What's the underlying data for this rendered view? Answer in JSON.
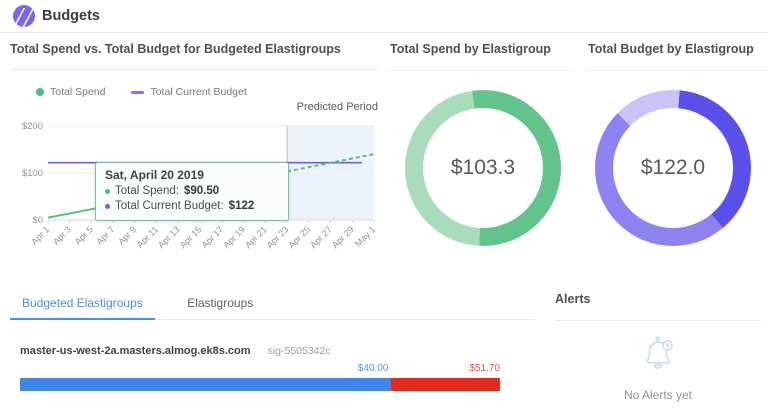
{
  "header": {
    "title": "Budgets"
  },
  "panels": {
    "spend_vs_budget": {
      "title": "Total Spend vs. Total Budget for Budgeted Elastigroups",
      "legend": [
        {
          "label": "Total Spend",
          "color": "#4abd8a",
          "marker": "dot"
        },
        {
          "label": "Total Current Budget",
          "color": "#8278ea",
          "marker": "dash"
        }
      ],
      "predicted_label": "Predicted Period",
      "tooltip": {
        "date": "Sat, April 20 2019",
        "rows": [
          {
            "label": "Total Spend:",
            "value": "$90.50",
            "color": "#4abd8a"
          },
          {
            "label": "Total Current Budget:",
            "value": "$122",
            "color": "#6b5fe6"
          }
        ]
      }
    },
    "total_spend": {
      "title": "Total Spend by Elastigroup",
      "center_label": "$103.3"
    },
    "total_budget": {
      "title": "Total Budget by Elastigroup",
      "center_label": "$122.0"
    },
    "alerts": {
      "title": "Alerts",
      "empty_message": "No Alerts yet"
    }
  },
  "tabs": [
    {
      "label": "Budgeted Elastigroups",
      "active": true
    },
    {
      "label": "Elastigroups",
      "active": false
    }
  ],
  "elastigroup_row": {
    "name": "master-us-west-2a.masters.almog.ek8s.com",
    "sig": "sig-5505342c",
    "spend_label": "$40.00",
    "total_label": "$51.70",
    "spend_value": 40.0,
    "total_value": 51.7,
    "spend_color": "#3e86e8",
    "over_color": "#e52a1f"
  },
  "chart_data": [
    {
      "type": "line",
      "title": "Total Spend vs. Total Budget for Budgeted Elastigroups",
      "x": [
        "Apr 1",
        "Apr 3",
        "Apr 5",
        "Apr 7",
        "Apr 9",
        "Apr 11",
        "Apr 13",
        "Apr 15",
        "Apr 17",
        "Apr 19",
        "Apr 21",
        "Apr 23",
        "Apr 25",
        "Apr 27",
        "Apr 29",
        "May 1"
      ],
      "series": [
        {
          "name": "Total Spend",
          "color": "#55bd86",
          "values": [
            5,
            14,
            23,
            32,
            41,
            50,
            59,
            68,
            77,
            86.5,
            95.5,
            103.3,
            112.5,
            121.7,
            130.9,
            140
          ],
          "predicted_from_index": 11
        },
        {
          "name": "Total Current Budget",
          "color": "#6b5fe6",
          "constant_value": 122
        }
      ],
      "ylim": [
        0,
        200
      ],
      "ytick_values": [
        0,
        100,
        200
      ],
      "yticks": [
        "$0",
        "$100",
        "$200"
      ],
      "marker_point": {
        "x_index": 9.5,
        "value": 90.5,
        "date": "Sat, April 20 2019"
      },
      "predicted_region_label": "Predicted Period",
      "grid": true,
      "legend_position": "top-left"
    },
    {
      "type": "pie",
      "title": "Total Spend by Elastigroup",
      "center_label": "$103.3",
      "start_angle": -8,
      "slices": [
        {
          "value": 54.8,
          "pct": 53,
          "color": "#62c48c"
        },
        {
          "value": 48.5,
          "pct": 47,
          "color": "#a9dcbb"
        }
      ]
    },
    {
      "type": "pie",
      "title": "Total Budget by Elastigroup",
      "center_label": "$122.0",
      "start_angle": 5,
      "slices": [
        {
          "value": 45.8,
          "pct": 37.5,
          "color": "#5b4fe9"
        },
        {
          "value": 59.1,
          "pct": 48.5,
          "color": "#8d83f0"
        },
        {
          "value": 17.1,
          "pct": 14,
          "color": "#cac3f7"
        }
      ]
    },
    {
      "type": "bar",
      "title": "Budgeted Elastigroups",
      "items": [
        {
          "name": "master-us-west-2a.masters.almog.ek8s.com",
          "sig": "sig-5505342c",
          "budget": 40.0,
          "total_spend": 51.7,
          "over_budget": 11.7
        }
      ]
    }
  ]
}
